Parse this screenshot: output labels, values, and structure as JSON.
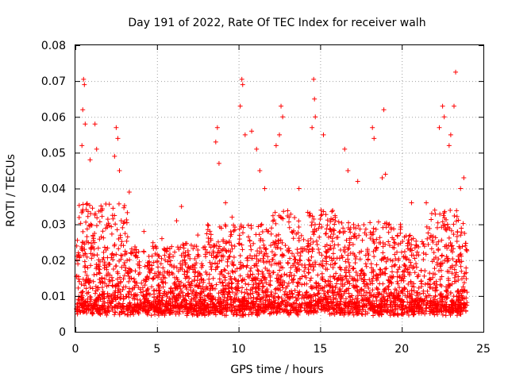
{
  "chart_data": {
    "type": "scatter",
    "title": "Day 191 of 2022, Rate Of TEC Index for receiver walh",
    "xlabel": "GPS time / hours",
    "ylabel": "ROTI / TECUs",
    "xlim": [
      0,
      25
    ],
    "ylim": [
      0,
      0.08
    ],
    "x_ticks": [
      "0",
      "5",
      "10",
      "15",
      "20",
      "25"
    ],
    "y_ticks": [
      "0",
      "0.01",
      "0.02",
      "0.03",
      "0.04",
      "0.05",
      "0.06",
      "0.07",
      "0.08"
    ],
    "grid": true,
    "marker": "+",
    "color": "#ff0000",
    "series": [
      {
        "points": [
          [
            0.5,
            0.0705
          ],
          [
            0.55,
            0.069
          ],
          [
            0.45,
            0.062
          ],
          [
            0.6,
            0.058
          ],
          [
            0.4,
            0.052
          ],
          [
            1.2,
            0.058
          ],
          [
            1.3,
            0.051
          ],
          [
            0.9,
            0.048
          ],
          [
            2.5,
            0.057
          ],
          [
            2.6,
            0.054
          ],
          [
            2.4,
            0.049
          ],
          [
            2.7,
            0.045
          ],
          [
            8.7,
            0.057
          ],
          [
            8.6,
            0.053
          ],
          [
            8.8,
            0.047
          ],
          [
            10.2,
            0.0705
          ],
          [
            10.25,
            0.069
          ],
          [
            10.1,
            0.063
          ],
          [
            10.4,
            0.055
          ],
          [
            10.8,
            0.056
          ],
          [
            11.1,
            0.051
          ],
          [
            12.6,
            0.063
          ],
          [
            12.7,
            0.06
          ],
          [
            12.5,
            0.055
          ],
          [
            12.3,
            0.052
          ],
          [
            14.6,
            0.0705
          ],
          [
            14.65,
            0.065
          ],
          [
            14.7,
            0.06
          ],
          [
            14.5,
            0.057
          ],
          [
            15.2,
            0.055
          ],
          [
            16.5,
            0.051
          ],
          [
            18.2,
            0.057
          ],
          [
            18.9,
            0.062
          ],
          [
            18.3,
            0.054
          ],
          [
            22.5,
            0.063
          ],
          [
            22.6,
            0.06
          ],
          [
            22.3,
            0.057
          ],
          [
            23.2,
            0.063
          ],
          [
            23.3,
            0.0725
          ],
          [
            23.0,
            0.055
          ],
          [
            22.9,
            0.052
          ],
          [
            4.2,
            0.028
          ],
          [
            6.5,
            0.035
          ],
          [
            6.2,
            0.031
          ],
          [
            19.0,
            0.044
          ],
          [
            18.8,
            0.043
          ],
          [
            11.3,
            0.045
          ],
          [
            11.6,
            0.04
          ],
          [
            13.7,
            0.04
          ],
          [
            16.7,
            0.045
          ],
          [
            17.3,
            0.042
          ],
          [
            20.6,
            0.036
          ],
          [
            21.5,
            0.036
          ],
          [
            23.8,
            0.043
          ],
          [
            23.6,
            0.04
          ],
          [
            5.3,
            0.026
          ],
          [
            7.5,
            0.027
          ],
          [
            9.2,
            0.036
          ],
          [
            9.6,
            0.032
          ],
          [
            3.3,
            0.039
          ]
        ]
      }
    ],
    "density_model": {
      "range_hours": [
        0.05,
        24.0
      ],
      "description_free": true
    }
  }
}
